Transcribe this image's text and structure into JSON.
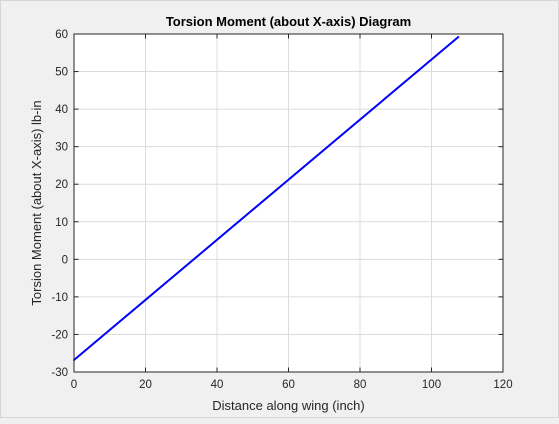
{
  "chart_data": {
    "type": "line",
    "title": "Torsion Moment (about X-axis) Diagram",
    "xlabel": "Distance along wing (inch)",
    "ylabel": "Torsion Moment (about X-axis) lb-in",
    "xlim": [
      0,
      120
    ],
    "ylim": [
      -30,
      60
    ],
    "xticks": [
      0,
      20,
      40,
      60,
      80,
      100,
      120
    ],
    "yticks": [
      -30,
      -20,
      -10,
      0,
      10,
      20,
      30,
      40,
      50,
      60
    ],
    "grid": true,
    "series": [
      {
        "x": [
          0,
          107.5
        ],
        "y": [
          -26.8,
          59.2
        ],
        "color": "#0000ff"
      }
    ]
  },
  "colors": {
    "background": "#f0f0f0",
    "axes": "#ffffff",
    "grid": "#dcdcdc",
    "line": "#0000ff"
  }
}
